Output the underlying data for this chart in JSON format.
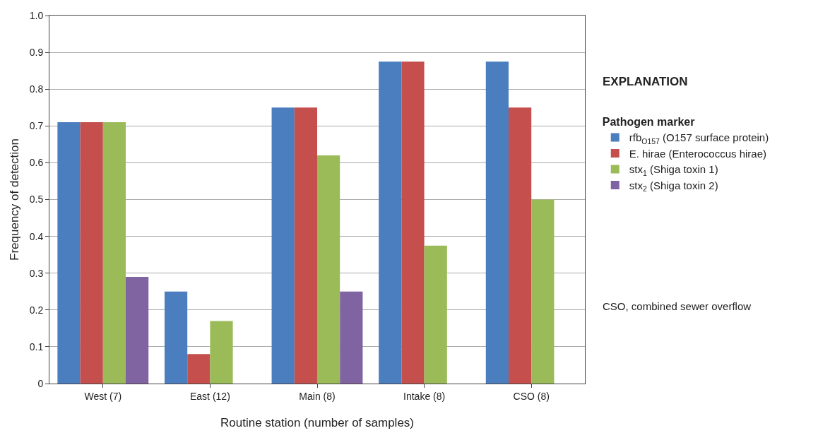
{
  "chart_data": {
    "type": "bar",
    "xlabel": "Routine station (number of samples)",
    "ylabel": "Frequency of detection",
    "categories": [
      "West (7)",
      "East (12)",
      "Main (8)",
      "Intake (8)",
      "CSO (8)"
    ],
    "series": [
      {
        "name": "rfb$_{O157}$ (O157 surface protein)",
        "color": "#4a7ebf",
        "values": [
          0.71,
          0.25,
          0.75,
          0.875,
          0.875
        ]
      },
      {
        "name": "E. hirae (Enterococcus hirae)",
        "color": "#c44f4d",
        "values": [
          0.71,
          0.08,
          0.75,
          0.875,
          0.75
        ]
      },
      {
        "name": "stx$_{1}$ (Shiga toxin 1)",
        "color": "#9bbb59",
        "values": [
          0.71,
          0.17,
          0.62,
          0.375,
          0.5
        ]
      },
      {
        "name": "stx$_{2}$ (Shiga toxin 2)",
        "color": "#8064a2",
        "values": [
          0.29,
          null,
          0.25,
          null,
          null
        ]
      }
    ],
    "ylim": [
      0,
      1
    ],
    "yticks": [
      0,
      0.1,
      0.2,
      0.3,
      0.4,
      0.5,
      0.6,
      0.7,
      0.8,
      0.9,
      {
        "value": 1,
        "label": "1.0"
      }
    ],
    "grid": "y",
    "legend": "right",
    "legend_title": "Pathogen marker",
    "annotations": [
      "EXPLANATION",
      "CSO, combined sewer overflow"
    ]
  }
}
